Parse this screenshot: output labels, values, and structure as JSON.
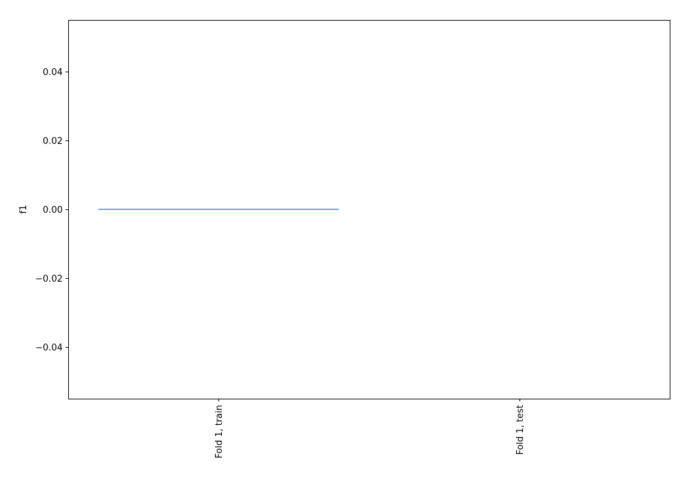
{
  "chart_data": {
    "type": "bar",
    "categories": [
      "Fold 1, train",
      "Fold 1, test"
    ],
    "series": [
      {
        "values": [
          0.0,
          0.0
        ]
      }
    ],
    "title": "",
    "xlabel": "",
    "ylabel": "f1",
    "ylim": [
      -0.055,
      0.055
    ],
    "yticks": [
      -0.04,
      -0.02,
      0.0,
      0.02,
      0.04
    ],
    "ytick_labels": [
      "−0.04",
      "−0.02",
      "0.00",
      "0.02",
      "0.04"
    ],
    "grid": false,
    "legend": "none",
    "colors": {
      "bar": "#1f77b4",
      "axes": "#000000",
      "background": "#ffffff"
    }
  }
}
